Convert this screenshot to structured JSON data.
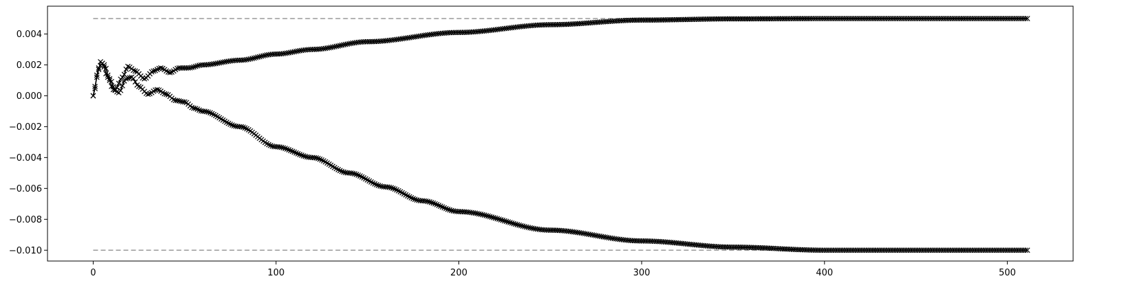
{
  "chart_data": {
    "type": "line",
    "title": "",
    "xlabel": "",
    "ylabel": "",
    "xlim": [
      -25,
      536
    ],
    "ylim": [
      -0.0107,
      0.0058
    ],
    "grid": false,
    "x_ticks": [
      0,
      100,
      200,
      300,
      400,
      500
    ],
    "x_tick_labels": [
      "0",
      "100",
      "200",
      "300",
      "400",
      "500"
    ],
    "y_ticks": [
      0.004,
      0.002,
      0.0,
      -0.002,
      -0.004,
      -0.006,
      -0.008,
      -0.01
    ],
    "y_tick_labels": [
      "0.004",
      "0.002",
      "0.000",
      "−0.002",
      "−0.004",
      "−0.006",
      "−0.008",
      "−0.010"
    ],
    "reference_lines": [
      {
        "y": 0.005,
        "x": [
          0,
          511
        ],
        "style": "dashed",
        "color": "#999999"
      },
      {
        "y": -0.01,
        "x": [
          0,
          511
        ],
        "style": "dashed",
        "color": "#999999"
      }
    ],
    "series": [
      {
        "marker": "x",
        "color": "#000000",
        "n_points": 512,
        "x_start": 0,
        "x_end": 511,
        "shape": "starts at 0, damped oscillations up to ~0.0022 near x=4, then rises smoothly to plateau at 0.005 by x~350",
        "anchors": [
          [
            0,
            0.0
          ],
          [
            2,
            0.0012
          ],
          [
            4,
            0.0022
          ],
          [
            6,
            0.002
          ],
          [
            9,
            0.0011
          ],
          [
            12,
            0.0004
          ],
          [
            16,
            0.0012
          ],
          [
            19,
            0.0019
          ],
          [
            23,
            0.0016
          ],
          [
            28,
            0.0011
          ],
          [
            33,
            0.0016
          ],
          [
            37,
            0.0018
          ],
          [
            42,
            0.0015
          ],
          [
            47,
            0.0018
          ],
          [
            52,
            0.0018
          ],
          [
            60,
            0.002
          ],
          [
            80,
            0.0023
          ],
          [
            100,
            0.0027
          ],
          [
            120,
            0.003
          ],
          [
            150,
            0.0035
          ],
          [
            200,
            0.0041
          ],
          [
            250,
            0.0046
          ],
          [
            300,
            0.0049
          ],
          [
            350,
            0.00498
          ],
          [
            400,
            0.005
          ],
          [
            511,
            0.005
          ]
        ]
      },
      {
        "marker": "x",
        "color": "#000000",
        "n_points": 512,
        "x_start": 0,
        "x_end": 511,
        "shape": "starts at 0, damped oscillations, then decreases smoothly to plateau at -0.010 by x~400",
        "anchors": [
          [
            0,
            0.0
          ],
          [
            3,
            0.0018
          ],
          [
            5,
            0.0021
          ],
          [
            8,
            0.0012
          ],
          [
            11,
            0.0004
          ],
          [
            14,
            0.0002
          ],
          [
            18,
            0.0011
          ],
          [
            21,
            0.0012
          ],
          [
            25,
            0.0006
          ],
          [
            30,
            0.0001
          ],
          [
            35,
            0.0004
          ],
          [
            40,
            0.0001
          ],
          [
            45,
            -0.0003
          ],
          [
            50,
            -0.0004
          ],
          [
            55,
            -0.0008
          ],
          [
            60,
            -0.001
          ],
          [
            80,
            -0.002
          ],
          [
            100,
            -0.0033
          ],
          [
            120,
            -0.004
          ],
          [
            140,
            -0.005
          ],
          [
            160,
            -0.0059
          ],
          [
            180,
            -0.0068
          ],
          [
            200,
            -0.0075
          ],
          [
            250,
            -0.0087
          ],
          [
            300,
            -0.0094
          ],
          [
            350,
            -0.0098
          ],
          [
            400,
            -0.01
          ],
          [
            511,
            -0.01
          ]
        ]
      }
    ]
  }
}
